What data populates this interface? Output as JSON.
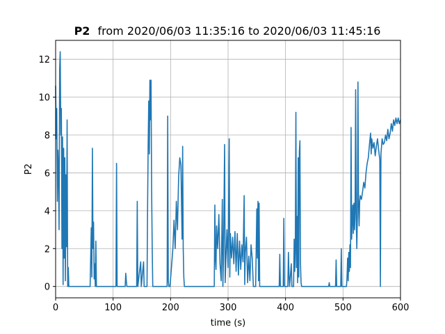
{
  "chart_data": {
    "type": "line",
    "title": {
      "bold": "P2",
      "rest": "from 2020/06/03 11:35:16 to 2020/06/03 11:45:16"
    },
    "xlabel": "time (s)",
    "ylabel": "P2",
    "xlim": [
      0,
      600
    ],
    "ylim": [
      -0.6,
      13.0
    ],
    "xticks": [
      0,
      100,
      200,
      300,
      400,
      500,
      600
    ],
    "yticks": [
      0,
      2,
      4,
      6,
      8,
      10,
      12
    ],
    "grid": true,
    "line_color": "#1f77b4",
    "series": [
      {
        "values": [
          [
            0,
            10.6
          ],
          [
            1,
            7.8
          ],
          [
            2,
            9.4
          ],
          [
            3,
            4.5
          ],
          [
            4,
            7.2
          ],
          [
            5,
            6.1
          ],
          [
            6,
            3.0
          ],
          [
            7,
            11.5
          ],
          [
            8,
            12.4
          ],
          [
            9,
            8.0
          ],
          [
            10,
            9.4
          ],
          [
            11,
            2.0
          ],
          [
            12,
            7.9
          ],
          [
            13,
            0.1
          ],
          [
            14,
            7.3
          ],
          [
            15,
            1.5
          ],
          [
            16,
            6.8
          ],
          [
            17,
            0.3
          ],
          [
            18,
            5.9
          ],
          [
            19,
            2.1
          ],
          [
            20,
            8.8
          ],
          [
            21,
            0.0
          ],
          [
            22,
            1.0
          ],
          [
            23,
            0.0
          ],
          [
            60,
            0.0
          ],
          [
            62,
            3.1
          ],
          [
            63,
            0.5
          ],
          [
            64,
            7.3
          ],
          [
            65,
            2.0
          ],
          [
            66,
            3.4
          ],
          [
            67,
            0.4
          ],
          [
            68,
            1.2
          ],
          [
            69,
            0.0
          ],
          [
            70,
            2.4
          ],
          [
            71,
            0.0
          ],
          [
            105,
            0.0
          ],
          [
            106,
            6.5
          ],
          [
            107,
            0.0
          ],
          [
            121,
            0.0
          ],
          [
            122,
            0.7
          ],
          [
            123,
            0.3
          ],
          [
            124,
            0.0
          ],
          [
            141,
            0.0
          ],
          [
            142,
            4.5
          ],
          [
            143,
            0.0
          ],
          [
            148,
            1.3
          ],
          [
            149,
            0.0
          ],
          [
            153,
            1.3
          ],
          [
            154,
            0.0
          ],
          [
            159,
            0.0
          ],
          [
            160,
            4.2
          ],
          [
            161,
            7.5
          ],
          [
            162,
            9.8
          ],
          [
            163,
            7.0
          ],
          [
            164,
            10.9
          ],
          [
            165,
            8.8
          ],
          [
            166,
            10.9
          ],
          [
            167,
            5.2
          ],
          [
            168,
            2.1
          ],
          [
            169,
            0.0
          ],
          [
            194,
            0.0
          ],
          [
            195,
            9.0
          ],
          [
            196,
            0.3
          ],
          [
            197,
            0.0
          ],
          [
            199,
            0.0
          ],
          [
            200,
            0.4
          ],
          [
            202,
            1.2
          ],
          [
            204,
            2.0
          ],
          [
            206,
            3.5
          ],
          [
            208,
            2.0
          ],
          [
            210,
            4.5
          ],
          [
            212,
            3.0
          ],
          [
            214,
            5.8
          ],
          [
            216,
            6.8
          ],
          [
            218,
            6.4
          ],
          [
            220,
            2.5
          ],
          [
            221,
            7.4
          ],
          [
            222,
            2.0
          ],
          [
            223,
            0.5
          ],
          [
            224,
            0.0
          ],
          [
            276,
            0.0
          ],
          [
            277,
            4.3
          ],
          [
            278,
            1.5
          ],
          [
            279,
            0.9
          ],
          [
            280,
            3.2
          ],
          [
            282,
            2.0
          ],
          [
            284,
            3.8
          ],
          [
            286,
            1.2
          ],
          [
            288,
            0.3
          ],
          [
            290,
            4.6
          ],
          [
            291,
            0.0
          ],
          [
            292,
            1.5
          ],
          [
            294,
            7.5
          ],
          [
            295,
            0.2
          ],
          [
            296,
            1.2
          ],
          [
            298,
            3.0
          ],
          [
            300,
            1.0
          ],
          [
            302,
            7.8
          ],
          [
            303,
            0.5
          ],
          [
            304,
            2.8
          ],
          [
            306,
            1.5
          ],
          [
            308,
            2.6
          ],
          [
            310,
            1.2
          ],
          [
            312,
            2.9
          ],
          [
            314,
            0.8
          ],
          [
            316,
            2.8
          ],
          [
            318,
            0.6
          ],
          [
            320,
            2.4
          ],
          [
            322,
            0.9
          ],
          [
            324,
            2.2
          ],
          [
            326,
            1.3
          ],
          [
            328,
            4.8
          ],
          [
            329,
            0.1
          ],
          [
            330,
            1.8
          ],
          [
            332,
            2.6
          ],
          [
            334,
            0.2
          ],
          [
            336,
            1.6
          ],
          [
            338,
            0.3
          ],
          [
            340,
            2.2
          ],
          [
            342,
            1.5
          ],
          [
            344,
            0.0
          ],
          [
            346,
            0.0
          ],
          [
            348,
            0.0
          ],
          [
            350,
            4.1
          ],
          [
            351,
            1.5
          ],
          [
            352,
            4.5
          ],
          [
            353,
            0.3
          ],
          [
            354,
            4.4
          ],
          [
            355,
            0.0
          ],
          [
            389,
            0.0
          ],
          [
            390,
            1.7
          ],
          [
            391,
            0.0
          ],
          [
            396,
            0.0
          ],
          [
            397,
            3.6
          ],
          [
            398,
            0.0
          ],
          [
            404,
            0.0
          ],
          [
            405,
            1.8
          ],
          [
            406,
            0.6
          ],
          [
            407,
            0.0
          ],
          [
            410,
            1.2
          ],
          [
            411,
            0.0
          ],
          [
            414,
            0.0
          ],
          [
            415,
            2.5
          ],
          [
            416,
            0.8
          ],
          [
            417,
            2.0
          ],
          [
            418,
            9.2
          ],
          [
            419,
            1.0
          ],
          [
            420,
            3.7
          ],
          [
            421,
            0.2
          ],
          [
            422,
            6.8
          ],
          [
            423,
            0.5
          ],
          [
            424,
            7.1
          ],
          [
            425,
            7.7
          ],
          [
            426,
            1.2
          ],
          [
            427,
            0.2
          ],
          [
            428,
            0.0
          ],
          [
            475,
            0.0
          ],
          [
            476,
            0.2
          ],
          [
            477,
            0.0
          ],
          [
            487,
            0.0
          ],
          [
            488,
            1.4
          ],
          [
            489,
            0.0
          ],
          [
            496,
            0.0
          ],
          [
            497,
            2.0
          ],
          [
            498,
            0.0
          ],
          [
            506,
            0.0
          ],
          [
            507,
            0.5
          ],
          [
            508,
            1.5
          ],
          [
            509,
            0.3
          ],
          [
            510,
            1.8
          ],
          [
            511,
            0.8
          ],
          [
            512,
            2.2
          ],
          [
            513,
            1.0
          ],
          [
            514,
            8.4
          ],
          [
            515,
            2.5
          ],
          [
            516,
            3.5
          ],
          [
            517,
            4.3
          ],
          [
            518,
            2.8
          ],
          [
            519,
            4.4
          ],
          [
            520,
            3.0
          ],
          [
            521,
            4.0
          ],
          [
            522,
            10.4
          ],
          [
            523,
            3.5
          ],
          [
            524,
            2.0
          ],
          [
            525,
            3.8
          ],
          [
            526,
            10.8
          ],
          [
            527,
            4.2
          ],
          [
            528,
            3.2
          ],
          [
            529,
            4.5
          ],
          [
            530,
            4.8
          ],
          [
            532,
            4.6
          ],
          [
            534,
            5.0
          ],
          [
            536,
            5.5
          ],
          [
            538,
            5.2
          ],
          [
            540,
            6.0
          ],
          [
            542,
            6.5
          ],
          [
            544,
            6.8
          ],
          [
            546,
            7.5
          ],
          [
            548,
            8.1
          ],
          [
            549,
            7.0
          ],
          [
            550,
            7.8
          ],
          [
            552,
            7.3
          ],
          [
            554,
            7.6
          ],
          [
            556,
            6.9
          ],
          [
            558,
            7.4
          ],
          [
            560,
            7.8
          ],
          [
            562,
            7.2
          ],
          [
            564,
            6.7
          ],
          [
            565,
            0.0
          ],
          [
            566,
            7.0
          ],
          [
            568,
            7.8
          ],
          [
            570,
            7.5
          ],
          [
            572,
            7.6
          ],
          [
            574,
            8.0
          ],
          [
            576,
            7.7
          ],
          [
            578,
            8.3
          ],
          [
            580,
            7.8
          ],
          [
            582,
            8.1
          ],
          [
            584,
            8.6
          ],
          [
            586,
            8.2
          ],
          [
            588,
            8.8
          ],
          [
            590,
            8.5
          ],
          [
            592,
            8.9
          ],
          [
            594,
            8.6
          ],
          [
            596,
            8.9
          ],
          [
            598,
            8.6
          ],
          [
            600,
            8.8
          ]
        ]
      }
    ]
  }
}
